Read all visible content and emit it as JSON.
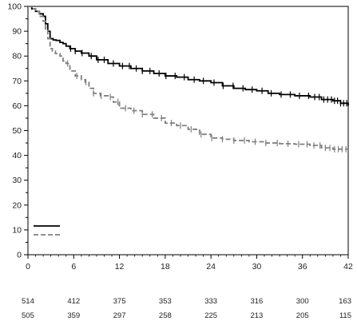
{
  "chart_data": {
    "type": "line",
    "xlim": [
      0,
      42
    ],
    "ylim": [
      0,
      100
    ],
    "x_ticks": [
      0,
      6,
      12,
      18,
      24,
      30,
      36,
      42
    ],
    "y_ticks": [
      0,
      10,
      20,
      30,
      40,
      50,
      60,
      70,
      80,
      90,
      100
    ],
    "grid": false,
    "legend": "bottom-left",
    "series": [
      {
        "style": "solid",
        "color": "#000000",
        "points": [
          [
            0,
            100
          ],
          [
            0.5,
            99
          ],
          [
            1,
            98
          ],
          [
            1.5,
            97
          ],
          [
            2,
            96
          ],
          [
            2.3,
            93
          ],
          [
            2.6,
            90
          ],
          [
            2.9,
            87
          ],
          [
            3.3,
            86.5
          ],
          [
            3.7,
            86.3
          ],
          [
            4.2,
            85.5
          ],
          [
            4.6,
            85
          ],
          [
            5.0,
            84
          ],
          [
            5.5,
            83
          ],
          [
            6.2,
            82
          ],
          [
            7.0,
            81.2
          ],
          [
            8.0,
            80
          ],
          [
            9.0,
            78.5
          ],
          [
            10.5,
            77
          ],
          [
            12,
            76
          ],
          [
            13.5,
            75
          ],
          [
            15,
            74
          ],
          [
            16.5,
            73
          ],
          [
            18,
            72
          ],
          [
            19.5,
            71.5
          ],
          [
            21,
            70.5
          ],
          [
            22.5,
            70
          ],
          [
            24,
            69.3
          ],
          [
            25.5,
            68
          ],
          [
            27,
            67
          ],
          [
            28.5,
            66.5
          ],
          [
            30,
            66
          ],
          [
            31.5,
            65
          ],
          [
            33,
            64.5
          ],
          [
            35,
            64
          ],
          [
            37,
            63.5
          ],
          [
            38.5,
            62.5
          ],
          [
            40,
            62
          ],
          [
            41,
            61
          ],
          [
            42,
            60
          ]
        ],
        "censor_x": [
          5.6,
          6.2,
          7.1,
          8.3,
          9.2,
          10.0,
          11.2,
          12.4,
          13.3,
          14.2,
          15.0,
          16.0,
          17.2,
          18.1,
          19.3,
          20.5,
          21.8,
          23.0,
          24.4,
          25.6,
          26.9,
          28.2,
          29.4,
          30.7,
          31.9,
          33.2,
          34.4,
          35.6,
          36.8,
          37.6,
          38.2,
          38.8,
          39.3,
          39.8,
          40.2,
          40.6,
          41.0,
          41.4,
          41.8
        ]
      },
      {
        "style": "dashed",
        "color": "#808080",
        "points": [
          [
            0,
            100
          ],
          [
            0.5,
            99
          ],
          [
            1,
            98
          ],
          [
            1.5,
            96
          ],
          [
            2,
            94
          ],
          [
            2.3,
            91
          ],
          [
            2.6,
            87
          ],
          [
            2.9,
            83
          ],
          [
            3.2,
            82
          ],
          [
            3.6,
            81
          ],
          [
            4.2,
            80
          ],
          [
            4.6,
            78
          ],
          [
            5,
            77
          ],
          [
            5.5,
            74
          ],
          [
            6.2,
            72
          ],
          [
            7,
            70.5
          ],
          [
            7.5,
            69.5
          ],
          [
            8,
            67
          ],
          [
            8.6,
            65
          ],
          [
            9.5,
            64
          ],
          [
            10.5,
            63.5
          ],
          [
            11.2,
            61.5
          ],
          [
            12,
            59
          ],
          [
            13.5,
            58
          ],
          [
            15,
            56.5
          ],
          [
            16.5,
            55
          ],
          [
            18,
            53
          ],
          [
            19.5,
            52
          ],
          [
            21,
            50.5
          ],
          [
            22.5,
            48.5
          ],
          [
            24,
            47
          ],
          [
            25.5,
            46.5
          ],
          [
            27,
            46
          ],
          [
            29,
            45.5
          ],
          [
            31,
            45
          ],
          [
            33,
            44.7
          ],
          [
            35,
            44.5
          ],
          [
            37,
            44
          ],
          [
            38.5,
            43
          ],
          [
            40,
            42.5
          ],
          [
            42,
            41.5
          ]
        ],
        "censor_x": [
          5.2,
          6.4,
          7.6,
          8.6,
          9.6,
          10.8,
          11.8,
          12.8,
          13.9,
          15.0,
          16.3,
          17.5,
          18.8,
          20.0,
          21.4,
          22.7,
          24.1,
          25.5,
          27.0,
          28.4,
          29.8,
          31.2,
          32.7,
          34.1,
          35.5,
          36.6,
          37.5,
          38.3,
          39.0,
          39.6,
          40.2,
          40.7,
          41.2,
          41.7
        ]
      }
    ],
    "risk_table": [
      [
        "514",
        "412",
        "375",
        "353",
        "333",
        "316",
        "300",
        "163"
      ],
      [
        "505",
        "359",
        "297",
        "258",
        "225",
        "213",
        "205",
        "115"
      ]
    ]
  }
}
